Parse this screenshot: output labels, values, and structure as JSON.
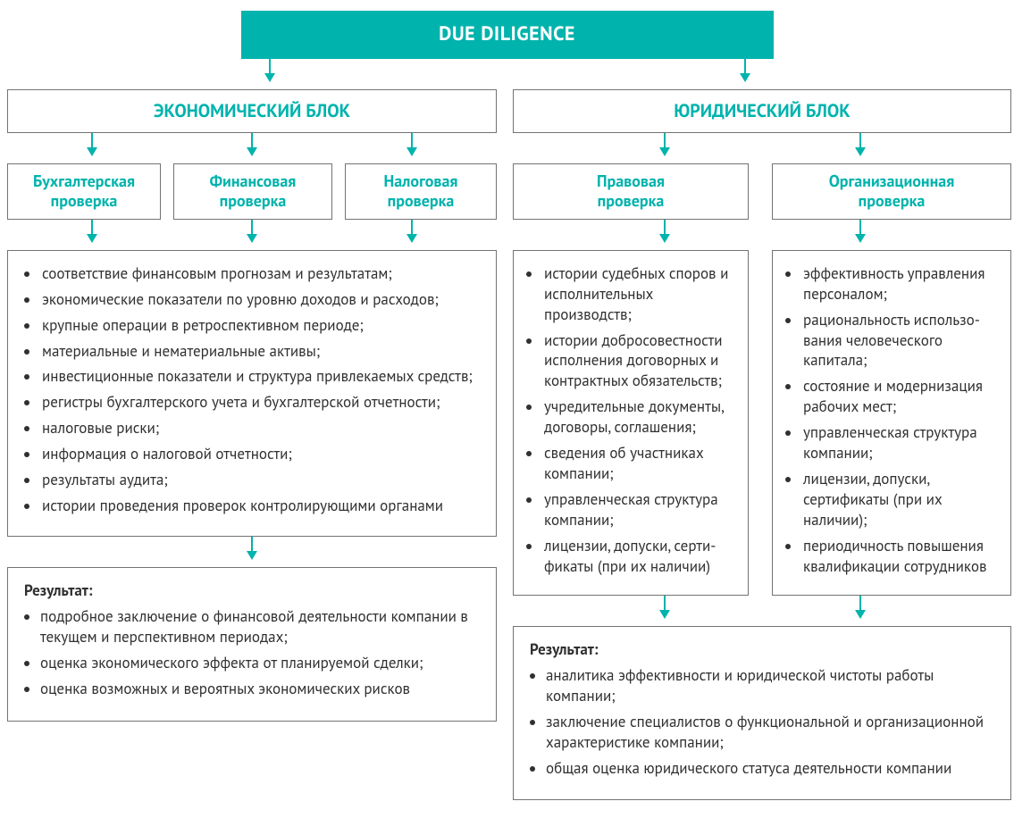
{
  "colors": {
    "accent": "#00b3ad",
    "text": "#303030",
    "box_border": "rgba(0,0,0,0.55)",
    "bg": "#ffffff"
  },
  "font": {
    "family": "PT Sans / sans-serif",
    "body_size_pt": 13,
    "title_size_pt": 17,
    "block_size_pt": 15,
    "sub_size_pt": 14
  },
  "type": "flowchart",
  "root": {
    "label": "DUE DILIGENCE"
  },
  "blocks": [
    {
      "id": "econ",
      "label": "ЭКОНОМИЧЕСКИЙ БЛОК",
      "subs": [
        {
          "id": "acc",
          "label": "Бухгалтерская\nпроверка"
        },
        {
          "id": "fin",
          "label": "Финансовая\nпроверка"
        },
        {
          "id": "tax",
          "label": "Налоговая\nпроверка"
        }
      ],
      "items": [
        "соответствие финансовым прогнозам и результатам;",
        "экономические показатели по уровню доходов и расходов;",
        "крупные операции в ретроспективном периоде;",
        "материальные и нематериальные активы;",
        "инвестиционные показатели и структура привлекаемых средств;",
        "регистры бухгалтерского учета и бухгалтерской отчетности;",
        "налоговые риски;",
        "информация о налоговой отчетности;",
        "результаты аудита;",
        "истории проведения проверок контролирующими органами"
      ],
      "result_label": "Результат:",
      "result_items": [
        "подробное заключение о финансовой деятельности компании в текущем и перспективном периодах;",
        "оценка экономического эффекта от планируемой сделки;",
        "оценка возможных и вероятных экономических рисков"
      ]
    },
    {
      "id": "legal",
      "label": "ЮРИДИЧЕСКИЙ БЛОК",
      "subs": [
        {
          "id": "law",
          "label": "Правовая\nпроверка",
          "items": [
            "истории судебных споров и исполнительных производств;",
            "истории добросовестности исполнения договорных и контрактных обязательств;",
            "учредительные документы, договоры, соглашения;",
            "сведения об участниках компании;",
            "управленческая структура компании;",
            "лицензии, допуски, серти­фикаты (при их наличии)"
          ]
        },
        {
          "id": "org",
          "label": "Организационная\nпроверка",
          "items": [
            "эффективность управления персоналом;",
            "рациональность использо­вания человеческого капитала;",
            "состояние и модернизация рабочих мест;",
            "управленческая структура компании;",
            "лицензии, допуски, сертификаты (при их наличии);",
            "периодичность повышения квалификации сотрудников"
          ]
        }
      ],
      "result_label": "Результат:",
      "result_items": [
        "аналитика эффективности и юридической чистоты работы компании;",
        "заключение специалистов о функциональной и ор­ганизационной характеристике компании;",
        "общая оценка юридического статуса деятельности компании"
      ]
    }
  ]
}
